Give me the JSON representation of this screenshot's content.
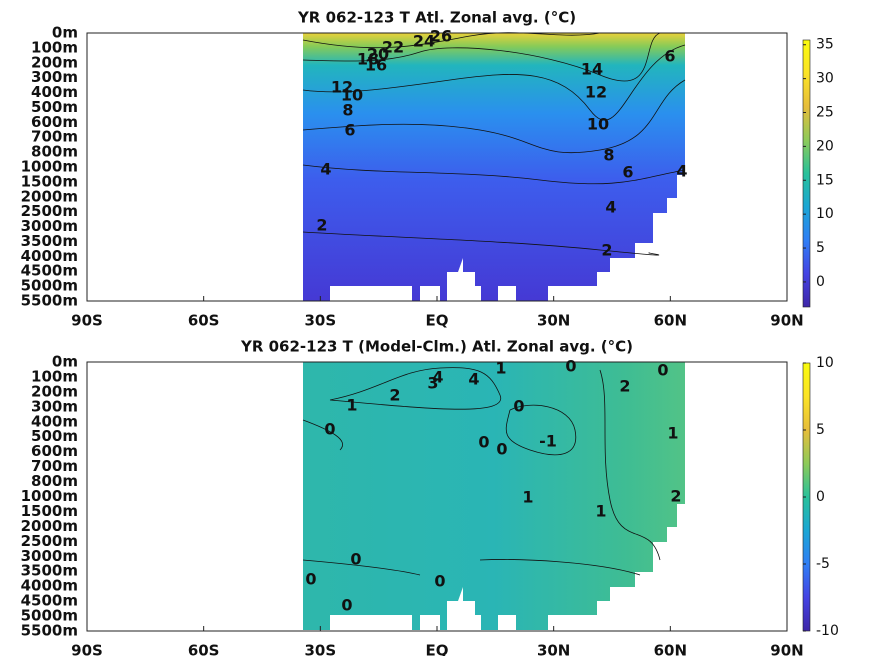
{
  "chart_data": [
    {
      "type": "heatmap",
      "title": "YR 062-123 T Atl. Zonal avg. (°C)",
      "y_categories": [
        "0m",
        "100m",
        "200m",
        "300m",
        "400m",
        "500m",
        "600m",
        "700m",
        "800m",
        "1000m",
        "1500m",
        "2000m",
        "2500m",
        "3000m",
        "3500m",
        "4000m",
        "4500m",
        "5000m",
        "5500m"
      ],
      "xlim": [
        -90,
        90
      ],
      "xticks": [
        {
          "value": -90,
          "label": "90S"
        },
        {
          "value": -60,
          "label": "60S"
        },
        {
          "value": -30,
          "label": "30S"
        },
        {
          "value": 0,
          "label": "EQ"
        },
        {
          "value": 30,
          "label": "30N"
        },
        {
          "value": 60,
          "label": "60N"
        },
        {
          "value": 90,
          "label": "90N"
        }
      ],
      "clim": [
        -3.7,
        35.7
      ],
      "cticks": [
        0,
        5,
        10,
        15,
        20,
        25,
        30,
        35
      ],
      "colormap": [
        "#3e26a8",
        "#4443e3",
        "#2f7ef5",
        "#1ba6d4",
        "#28c19a",
        "#8dca59",
        "#e6bd3b",
        "#fbe326",
        "#f9fb0e"
      ],
      "contour_labels": [
        26,
        24,
        22,
        20,
        18,
        16,
        14,
        12,
        12,
        10,
        8,
        10,
        6,
        6,
        8,
        4,
        6,
        4,
        4,
        2,
        2
      ]
    },
    {
      "type": "heatmap",
      "title": "YR 062-123 T (Model-Clm.) Atl. Zonal avg. (°C)",
      "y_categories": [
        "0m",
        "100m",
        "200m",
        "300m",
        "400m",
        "500m",
        "600m",
        "700m",
        "800m",
        "1000m",
        "1500m",
        "2000m",
        "2500m",
        "3000m",
        "3500m",
        "4000m",
        "4500m",
        "5000m",
        "5500m"
      ],
      "xlim": [
        -90,
        90
      ],
      "xticks": [
        {
          "value": -90,
          "label": "90S"
        },
        {
          "value": -60,
          "label": "60S"
        },
        {
          "value": -30,
          "label": "30S"
        },
        {
          "value": 0,
          "label": "EQ"
        },
        {
          "value": 30,
          "label": "30N"
        },
        {
          "value": 60,
          "label": "60N"
        },
        {
          "value": 90,
          "label": "90N"
        }
      ],
      "clim": [
        -10,
        10
      ],
      "cticks": [
        -10,
        -5,
        0,
        5,
        10
      ],
      "colormap": [
        "#3e26a8",
        "#4443e3",
        "#2f7ef5",
        "#1ba6d4",
        "#28c19a",
        "#8dca59",
        "#e6bd3b",
        "#fbe326",
        "#f9fb0e"
      ],
      "contour_labels": [
        1,
        0,
        0,
        2,
        4,
        4,
        3,
        2,
        1,
        0,
        0,
        -1,
        1,
        0,
        0,
        1,
        1,
        2,
        0,
        0,
        0,
        0
      ]
    }
  ]
}
